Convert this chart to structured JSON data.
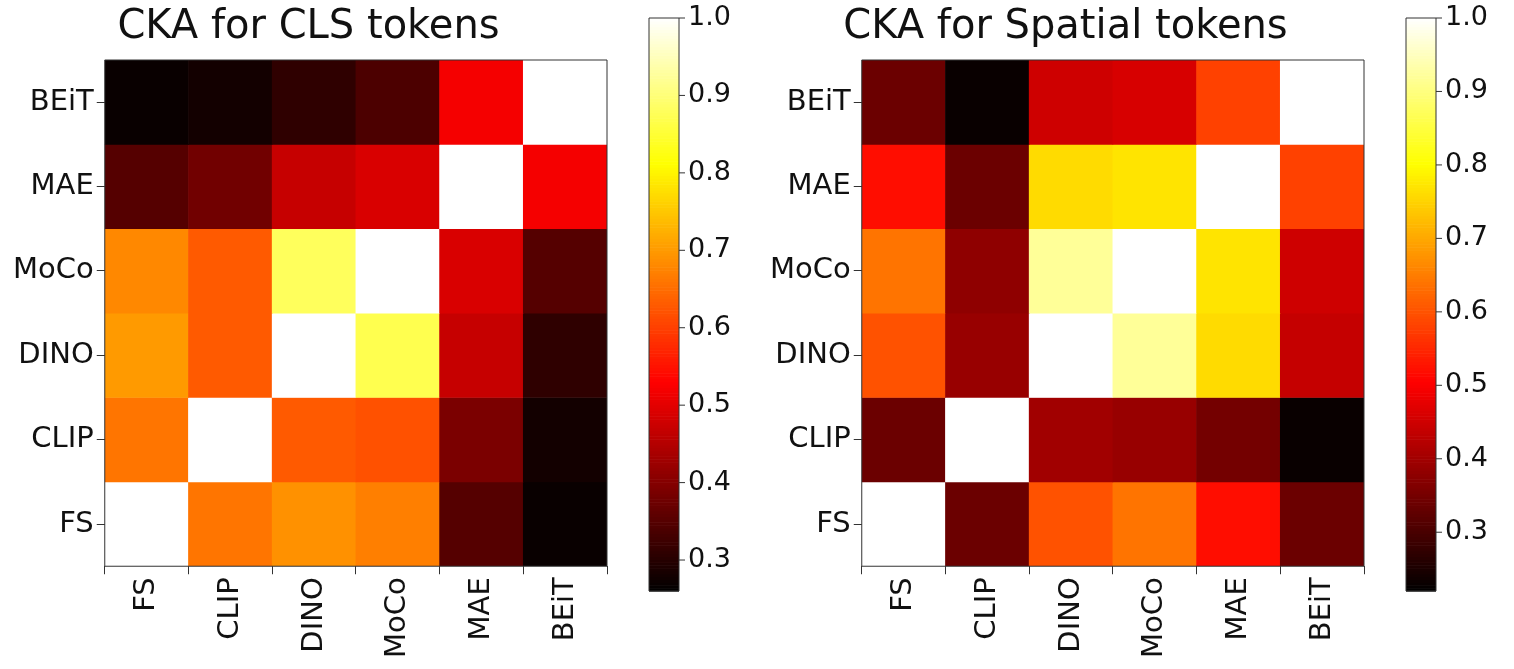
{
  "chart_data": [
    {
      "type": "heatmap",
      "title": "CKA for CLS tokens",
      "categories": [
        "FS",
        "CLIP",
        "DINO",
        "MoCo",
        "MAE",
        "BEiT"
      ],
      "y_categories": [
        "BEiT",
        "MAE",
        "MoCo",
        "DINO",
        "CLIP",
        "FS"
      ],
      "cells": [
        [
          0.27,
          0.28,
          0.31,
          0.34,
          0.52,
          1.0
        ],
        [
          0.35,
          0.38,
          0.47,
          0.49,
          1.0,
          0.52
        ],
        [
          0.68,
          0.63,
          0.88,
          1.0,
          0.49,
          0.35
        ],
        [
          0.7,
          0.63,
          1.0,
          0.87,
          0.47,
          0.31
        ],
        [
          0.66,
          1.0,
          0.63,
          0.62,
          0.39,
          0.28
        ],
        [
          1.0,
          0.66,
          0.69,
          0.67,
          0.35,
          0.27
        ]
      ],
      "clim": [
        0.26,
        1.0
      ],
      "cticks": [
        0.3,
        0.4,
        0.5,
        0.6,
        0.7,
        0.8,
        0.9,
        {
          "value": 1.0,
          "label": "1.0"
        }
      ]
    },
    {
      "type": "heatmap",
      "title": "CKA for Spatial tokens",
      "categories": [
        "FS",
        "CLIP",
        "DINO",
        "MoCo",
        "MAE",
        "BEiT"
      ],
      "y_categories": [
        "BEiT",
        "MAE",
        "MoCo",
        "DINO",
        "CLIP",
        "FS"
      ],
      "cells": [
        [
          0.34,
          0.23,
          0.45,
          0.46,
          0.58,
          1.0
        ],
        [
          0.52,
          0.34,
          0.76,
          0.77,
          1.0,
          0.58
        ],
        [
          0.64,
          0.38,
          0.92,
          1.0,
          0.77,
          0.45
        ],
        [
          0.6,
          0.39,
          1.0,
          0.92,
          0.76,
          0.44
        ],
        [
          0.34,
          1.0,
          0.4,
          0.39,
          0.35,
          0.23
        ],
        [
          1.0,
          0.34,
          0.6,
          0.64,
          0.52,
          0.34
        ]
      ],
      "clim": [
        0.22,
        1.0
      ],
      "cticks": [
        0.3,
        0.4,
        0.5,
        0.6,
        0.7,
        0.8,
        0.9,
        {
          "value": 1.0,
          "label": "1.0"
        }
      ]
    }
  ]
}
